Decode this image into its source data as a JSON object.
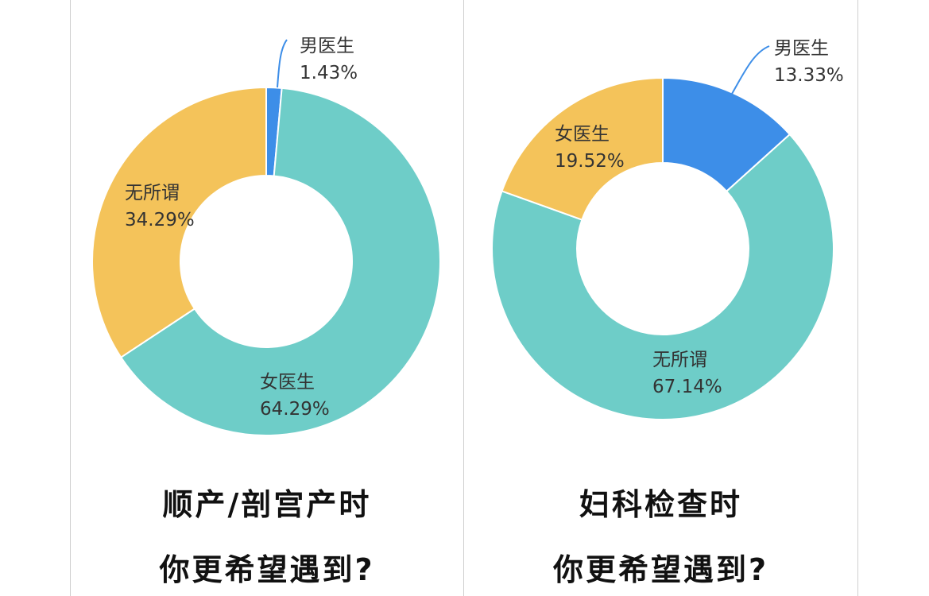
{
  "chart_data": [
    {
      "type": "pie",
      "variant": "donut",
      "caption_lines": [
        "顺产/剖宫产时",
        "你更希望遇到?"
      ],
      "slices": [
        {
          "label": "男医生",
          "value": 1.43,
          "value_text": "1.43%",
          "color": "#3d8ee8"
        },
        {
          "label": "女医生",
          "value": 64.29,
          "value_text": "64.29%",
          "color": "#6ecdc8"
        },
        {
          "label": "无所谓",
          "value": 34.29,
          "value_text": "34.29%",
          "color": "#f4c35a"
        }
      ]
    },
    {
      "type": "pie",
      "variant": "donut",
      "caption_lines": [
        "妇科检查时",
        "你更希望遇到?"
      ],
      "slices": [
        {
          "label": "男医生",
          "value": 13.33,
          "value_text": "13.33%",
          "color": "#3d8ee8"
        },
        {
          "label": "无所谓",
          "value": 67.14,
          "value_text": "67.14%",
          "color": "#6ecdc8"
        },
        {
          "label": "女医生",
          "value": 19.52,
          "value_text": "19.52%",
          "color": "#f4c35a"
        }
      ]
    }
  ]
}
